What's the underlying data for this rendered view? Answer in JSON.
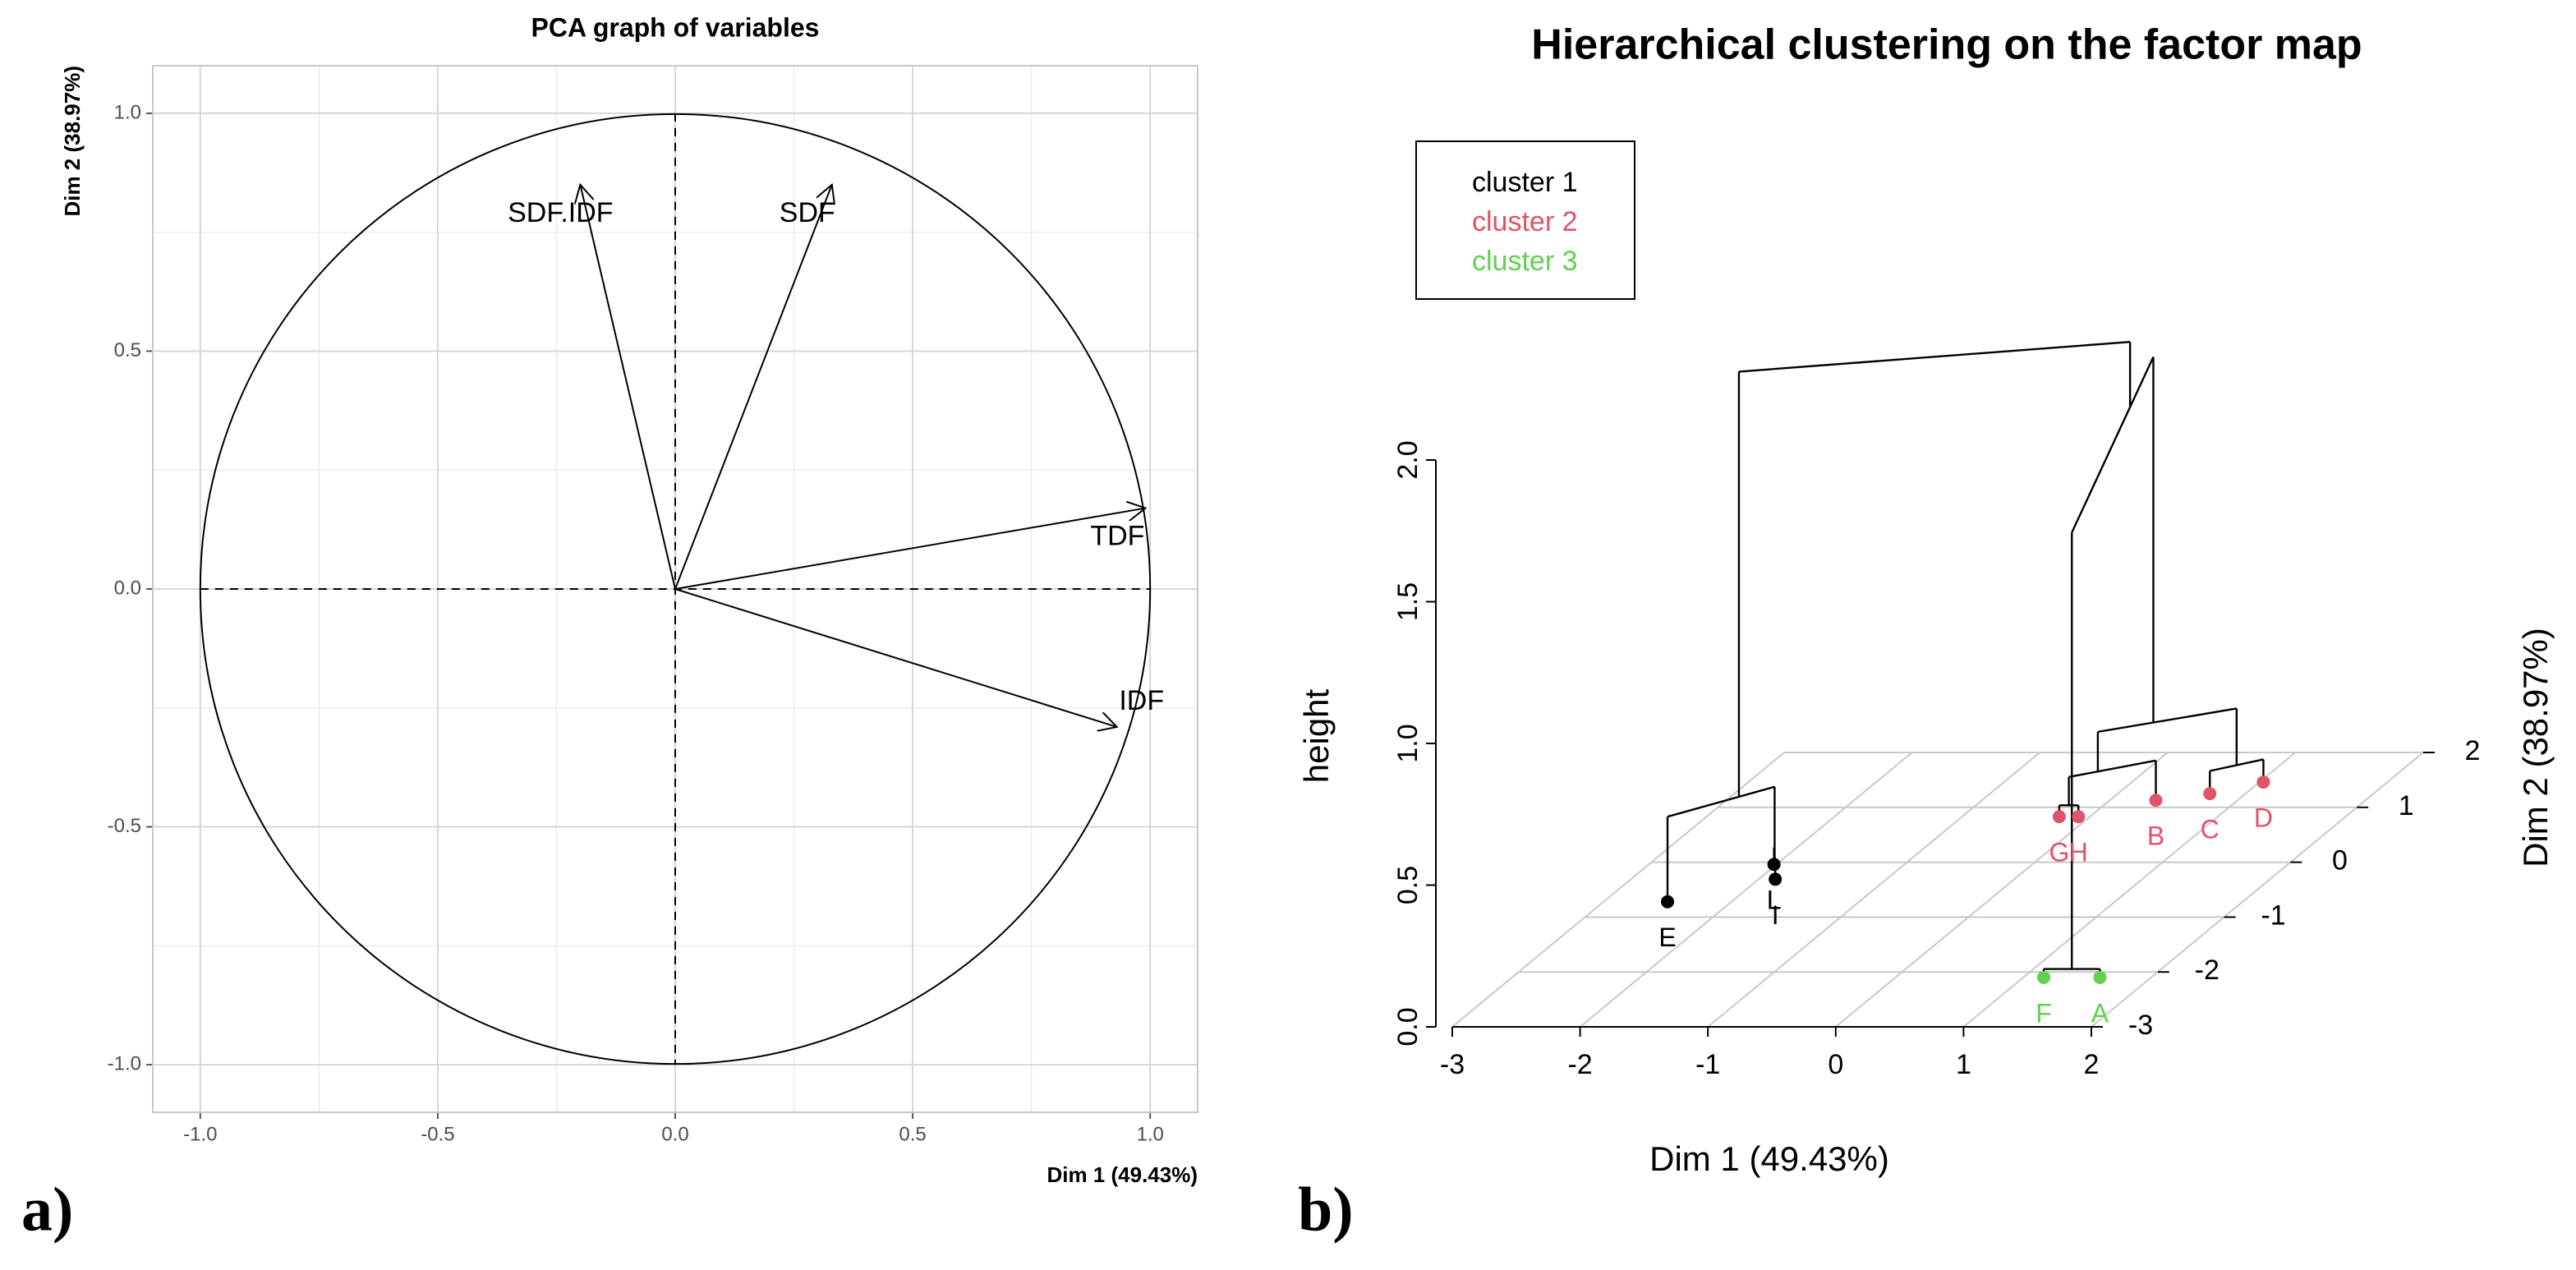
{
  "chart_data": [
    {
      "type": "vector",
      "title": "PCA graph of variables",
      "x_label": "Dim 1 (49.43%)",
      "y_label": "Dim 2 (38.97%)",
      "panel_label": "a)",
      "labels": [
        "SDF.IDF",
        "SDF",
        "TDF",
        "IDF"
      ],
      "x": [
        -0.2,
        0.33,
        0.99,
        0.93
      ],
      "y": [
        0.85,
        0.85,
        0.17,
        -0.29
      ],
      "circle_radius": 1,
      "xlim": [
        -1.1,
        1.1
      ],
      "ylim": [
        -1.1,
        1.1
      ],
      "xticks": [
        {
          "value": -1,
          "label": "-1.0"
        },
        -0.5,
        {
          "value": 0,
          "label": "0.0"
        },
        0.5,
        {
          "value": 1,
          "label": "1.0"
        }
      ],
      "yticks": [
        {
          "value": -1,
          "label": "-1.0"
        },
        -0.5,
        {
          "value": 0,
          "label": "0.0"
        },
        0.5,
        {
          "value": 1,
          "label": "1.0"
        }
      ],
      "grid": true
    },
    {
      "type": "dendrogram3d",
      "title": "Hierarchical clustering on the factor map",
      "x_label": "Dim 1 (49.43%)",
      "y_label": "Dim 2 (38.97%)",
      "z_label": "height",
      "panel_label": "b)",
      "clusters": [
        {
          "name": "cluster 1",
          "color": "#000000"
        },
        {
          "name": "cluster 2",
          "color": "#DF536B"
        },
        {
          "name": "cluster 3",
          "color": "#61D04F"
        }
      ],
      "points": [
        {
          "label": "E",
          "x": -2.5,
          "y": -0.72,
          "cluster": 0
        },
        {
          "label": "L",
          "x": -2.02,
          "y": -0.04,
          "cluster": 0
        },
        {
          "label": "I",
          "x": -1.87,
          "y": -0.31,
          "cluster": 0
        },
        {
          "label": "G",
          "x": -0.24,
          "y": 0.83,
          "cluster": 1
        },
        {
          "label": "H",
          "x": -0.09,
          "y": 0.83,
          "cluster": 1
        },
        {
          "label": "B",
          "x": 0.36,
          "y": 1.13,
          "cluster": 1
        },
        {
          "label": "C",
          "x": 0.72,
          "y": 1.25,
          "cluster": 1
        },
        {
          "label": "D",
          "x": 1.03,
          "y": 1.46,
          "cluster": 1
        },
        {
          "label": "F",
          "x": 1.16,
          "y": -2.1,
          "cluster": 2
        },
        {
          "label": "A",
          "x": 1.6,
          "y": -2.1,
          "cluster": 2
        }
      ],
      "merges": [
        {
          "left": [
            2
          ],
          "right": [
            1
          ],
          "height": 0.06
        },
        {
          "left": [
            8
          ],
          "right": [
            9
          ],
          "height": 0.03
        },
        {
          "left": [
            3
          ],
          "right": [
            4
          ],
          "height": 0.04
        },
        {
          "left": [
            6
          ],
          "right": [
            7
          ],
          "height": 0.08
        },
        {
          "left": [
            3,
            4
          ],
          "right": [
            5
          ],
          "height": 0.14
        },
        {
          "left": [
            0
          ],
          "right": [
            1,
            2
          ],
          "height": 0.3
        },
        {
          "left": [
            3,
            4,
            5
          ],
          "right": [
            6,
            7
          ],
          "height": 0.28
        },
        {
          "left": [
            3,
            4,
            5,
            6,
            7
          ],
          "right": [
            8,
            9
          ],
          "height": 1.57
        },
        {
          "left": [
            0,
            1,
            2
          ],
          "right": [
            3,
            4,
            5,
            6,
            7,
            8,
            9
          ],
          "height": 1.8
        }
      ],
      "xlim": [
        -3,
        2
      ],
      "ylim": [
        -3,
        2
      ],
      "zlim": [
        0,
        2
      ],
      "xticks": [
        -3,
        -2,
        -1,
        0,
        1,
        2
      ],
      "yticks": [
        -3,
        -2,
        -1,
        0,
        1,
        2
      ],
      "zticks": [
        {
          "value": 0,
          "label": "0.0"
        },
        0.5,
        {
          "value": 1,
          "label": "1.0"
        },
        1.5,
        {
          "value": 2,
          "label": "2.0"
        }
      ],
      "grid": true
    }
  ]
}
